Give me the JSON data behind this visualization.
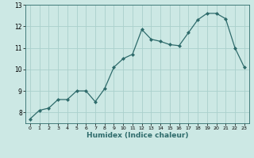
{
  "x": [
    0,
    1,
    2,
    3,
    4,
    5,
    6,
    7,
    8,
    9,
    10,
    11,
    12,
    13,
    14,
    15,
    16,
    17,
    18,
    19,
    20,
    21,
    22,
    23
  ],
  "y": [
    7.7,
    8.1,
    8.2,
    8.6,
    8.6,
    9.0,
    9.0,
    8.5,
    9.1,
    10.1,
    10.5,
    10.7,
    11.85,
    11.4,
    11.3,
    11.15,
    11.1,
    11.7,
    12.3,
    12.6,
    12.6,
    12.35,
    11.0,
    10.1
  ],
  "line_color": "#2e6b6b",
  "marker": "D",
  "marker_size": 2.0,
  "bg_color": "#cce8e4",
  "grid_color": "#aad0cc",
  "xlabel": "Humidex (Indice chaleur)",
  "ylim": [
    7.5,
    13.0
  ],
  "xlim": [
    -0.5,
    23.5
  ],
  "yticks": [
    8,
    9,
    10,
    11,
    12,
    13
  ],
  "xticks": [
    0,
    1,
    2,
    3,
    4,
    5,
    6,
    7,
    8,
    9,
    10,
    11,
    12,
    13,
    14,
    15,
    16,
    17,
    18,
    19,
    20,
    21,
    22,
    23
  ]
}
